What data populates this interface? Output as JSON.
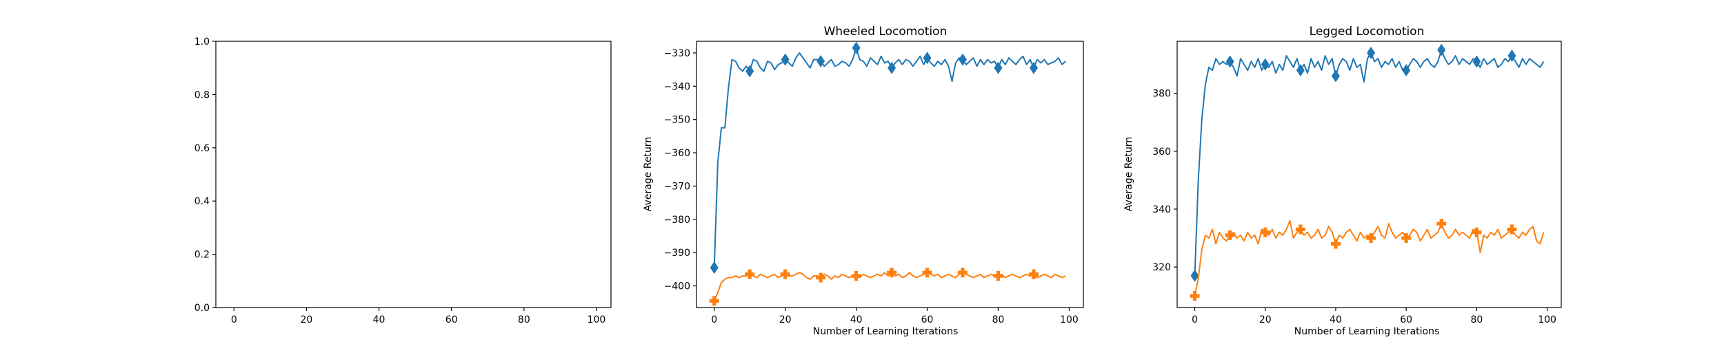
{
  "figure": {
    "panels": [
      {
        "title": "",
        "xlabel": "",
        "ylabel": ""
      },
      {
        "title": "Wheeled Locomotion",
        "xlabel": "Number of Learning Iterations",
        "ylabel": "Average Return"
      },
      {
        "title": "Legged Locomotion",
        "xlabel": "Number of Learning Iterations",
        "ylabel": "Average Return"
      }
    ]
  },
  "colors": {
    "series_a": "#1f77b4",
    "series_b": "#ff7f0e"
  },
  "chart_data": [
    {
      "type": "line",
      "title": "",
      "xlabel": "",
      "ylabel": "",
      "xlim": [
        -5,
        104
      ],
      "ylim": [
        0.0,
        1.0
      ],
      "xticks": [
        0,
        20,
        40,
        60,
        80,
        100
      ],
      "xtick_labels": [
        "0",
        "20",
        "40",
        "60",
        "80",
        "100"
      ],
      "yticks": [
        0.0,
        0.2,
        0.4,
        0.6,
        0.8,
        1.0
      ],
      "ytick_labels": [
        "0.0",
        "0.2",
        "0.4",
        "0.6",
        "0.8",
        "1.0"
      ],
      "grid": false,
      "series": []
    },
    {
      "type": "line",
      "title": "Wheeled Locomotion",
      "xlabel": "Number of Learning Iterations",
      "ylabel": "Average Return",
      "xlim": [
        -5,
        104
      ],
      "ylim": [
        -406.5,
        -326.5
      ],
      "xticks": [
        0,
        20,
        40,
        60,
        80,
        100
      ],
      "xtick_labels": [
        "0",
        "20",
        "40",
        "60",
        "80",
        "100"
      ],
      "yticks": [
        -400,
        -390,
        -380,
        -370,
        -360,
        -350,
        -340,
        -330
      ],
      "ytick_labels": [
        "−400",
        "−390",
        "−380",
        "−370",
        "−360",
        "−350",
        "−340",
        "−330"
      ],
      "grid": false,
      "series": [
        {
          "color": "#1f77b4",
          "marker": "diamond",
          "markevery": 10,
          "y": [
            -394.5,
            -363,
            -352.5,
            -352.5,
            -340.5,
            -332,
            -332.5,
            -334.5,
            -335.5,
            -334,
            -335.5,
            -332,
            -332.5,
            -334.5,
            -335.5,
            -332.5,
            -333,
            -335,
            -333.5,
            -333,
            -332,
            -333,
            -334,
            -331.5,
            -330,
            -331.5,
            -333,
            -334.5,
            -332,
            -332,
            -332.5,
            -334,
            -333,
            -332,
            -334,
            -333.5,
            -332.5,
            -333,
            -334,
            -332,
            -328.5,
            -332,
            -332.5,
            -334,
            -331.5,
            -332.5,
            -333.5,
            -331,
            -333,
            -332.5,
            -334.5,
            -333,
            -332,
            -333.5,
            -332,
            -332.5,
            -334,
            -332.5,
            -331,
            -333.5,
            -331.5,
            -333,
            -334,
            -332.5,
            -333.5,
            -332,
            -334,
            -338.5,
            -333,
            -331.5,
            -332,
            -333.5,
            -332.5,
            -331.5,
            -334,
            -332,
            -333.5,
            -332,
            -333,
            -332.5,
            -334.5,
            -332,
            -333.5,
            -331.5,
            -332.5,
            -333.5,
            -332,
            -331,
            -333.5,
            -332,
            -334.5,
            -332,
            -333,
            -332,
            -333.5,
            -333,
            -332.5,
            -331.5,
            -333.5,
            -332.5
          ]
        },
        {
          "color": "#ff7f0e",
          "marker": "plus",
          "markevery": 10,
          "y": [
            -404.5,
            -402,
            -399,
            -398,
            -397.5,
            -397.5,
            -397,
            -397.5,
            -397,
            -397,
            -396.5,
            -397,
            -397.5,
            -396.5,
            -397,
            -397.5,
            -397,
            -396.5,
            -397.5,
            -397,
            -396.5,
            -397,
            -397,
            -396.5,
            -396,
            -396.5,
            -397.5,
            -398,
            -397,
            -397,
            -397.5,
            -396.5,
            -397,
            -398,
            -397,
            -397.5,
            -396.5,
            -397,
            -397.5,
            -397,
            -397,
            -397.5,
            -396.5,
            -397,
            -397.5,
            -397,
            -396.5,
            -397,
            -396,
            -397,
            -396,
            -397,
            -396.5,
            -397.5,
            -397,
            -396,
            -397,
            -397.5,
            -397,
            -396.5,
            -396,
            -396.5,
            -397,
            -396.5,
            -397.5,
            -397,
            -396.5,
            -397,
            -397.5,
            -396.5,
            -396,
            -396.5,
            -397,
            -397.5,
            -397,
            -396.5,
            -397.5,
            -397,
            -396.5,
            -397,
            -397,
            -396.5,
            -397.5,
            -397,
            -396.5,
            -397,
            -397.5,
            -397,
            -396.5,
            -397,
            -396.5,
            -397.5,
            -397,
            -396.5,
            -397,
            -397.5,
            -396.5,
            -397,
            -397.5,
            -397
          ]
        }
      ]
    },
    {
      "type": "line",
      "title": "Legged Locomotion",
      "xlabel": "Number of Learning Iterations",
      "ylabel": "Average Return",
      "xlim": [
        -5,
        104
      ],
      "ylim": [
        306,
        398
      ],
      "xticks": [
        0,
        20,
        40,
        60,
        80,
        100
      ],
      "xtick_labels": [
        "0",
        "20",
        "40",
        "60",
        "80",
        "100"
      ],
      "yticks": [
        320,
        340,
        360,
        380
      ],
      "ytick_labels": [
        "320",
        "340",
        "360",
        "380"
      ],
      "grid": false,
      "series": [
        {
          "color": "#1f77b4",
          "marker": "diamond",
          "markevery": 10,
          "y": [
            317,
            350,
            371,
            383,
            389,
            388,
            392,
            390,
            391,
            390,
            391,
            389,
            386,
            392,
            390,
            388,
            391,
            389,
            392,
            388,
            390,
            389,
            391,
            387,
            390,
            388,
            393,
            391,
            389,
            392,
            388,
            390,
            387,
            392,
            389,
            391,
            388,
            393,
            390,
            392,
            386,
            390,
            392,
            391,
            388,
            392,
            389,
            390,
            384,
            392,
            394,
            391,
            392,
            389,
            391,
            390,
            392,
            389,
            391,
            388,
            388,
            390,
            392,
            391,
            389,
            391,
            392,
            390,
            389,
            391,
            395,
            392,
            390,
            391,
            393,
            390,
            392,
            391,
            390,
            392,
            391,
            389,
            392,
            390,
            391,
            392,
            389,
            390,
            392,
            391,
            393,
            391,
            389,
            392,
            390,
            392,
            391,
            390,
            389,
            391
          ]
        },
        {
          "color": "#ff7f0e",
          "marker": "plus",
          "markevery": 10,
          "y": [
            310,
            316,
            326,
            331,
            330,
            333,
            328,
            332,
            330,
            329,
            331,
            332,
            330,
            331,
            329,
            332,
            330,
            331,
            328,
            333,
            332,
            331,
            333,
            330,
            332,
            331,
            333,
            336,
            330,
            332,
            333,
            331,
            332,
            330,
            331,
            333,
            330,
            331,
            334,
            332,
            328,
            331,
            330,
            332,
            333,
            331,
            329,
            332,
            330,
            331,
            330,
            332,
            334,
            331,
            330,
            335,
            332,
            330,
            331,
            332,
            330,
            331,
            333,
            332,
            329,
            331,
            333,
            330,
            331,
            332,
            335,
            332,
            330,
            331,
            333,
            331,
            332,
            331,
            330,
            333,
            332,
            325,
            331,
            330,
            332,
            331,
            333,
            330,
            331,
            332,
            333,
            331,
            330,
            332,
            331,
            333,
            334,
            329,
            328,
            332
          ]
        }
      ]
    }
  ]
}
